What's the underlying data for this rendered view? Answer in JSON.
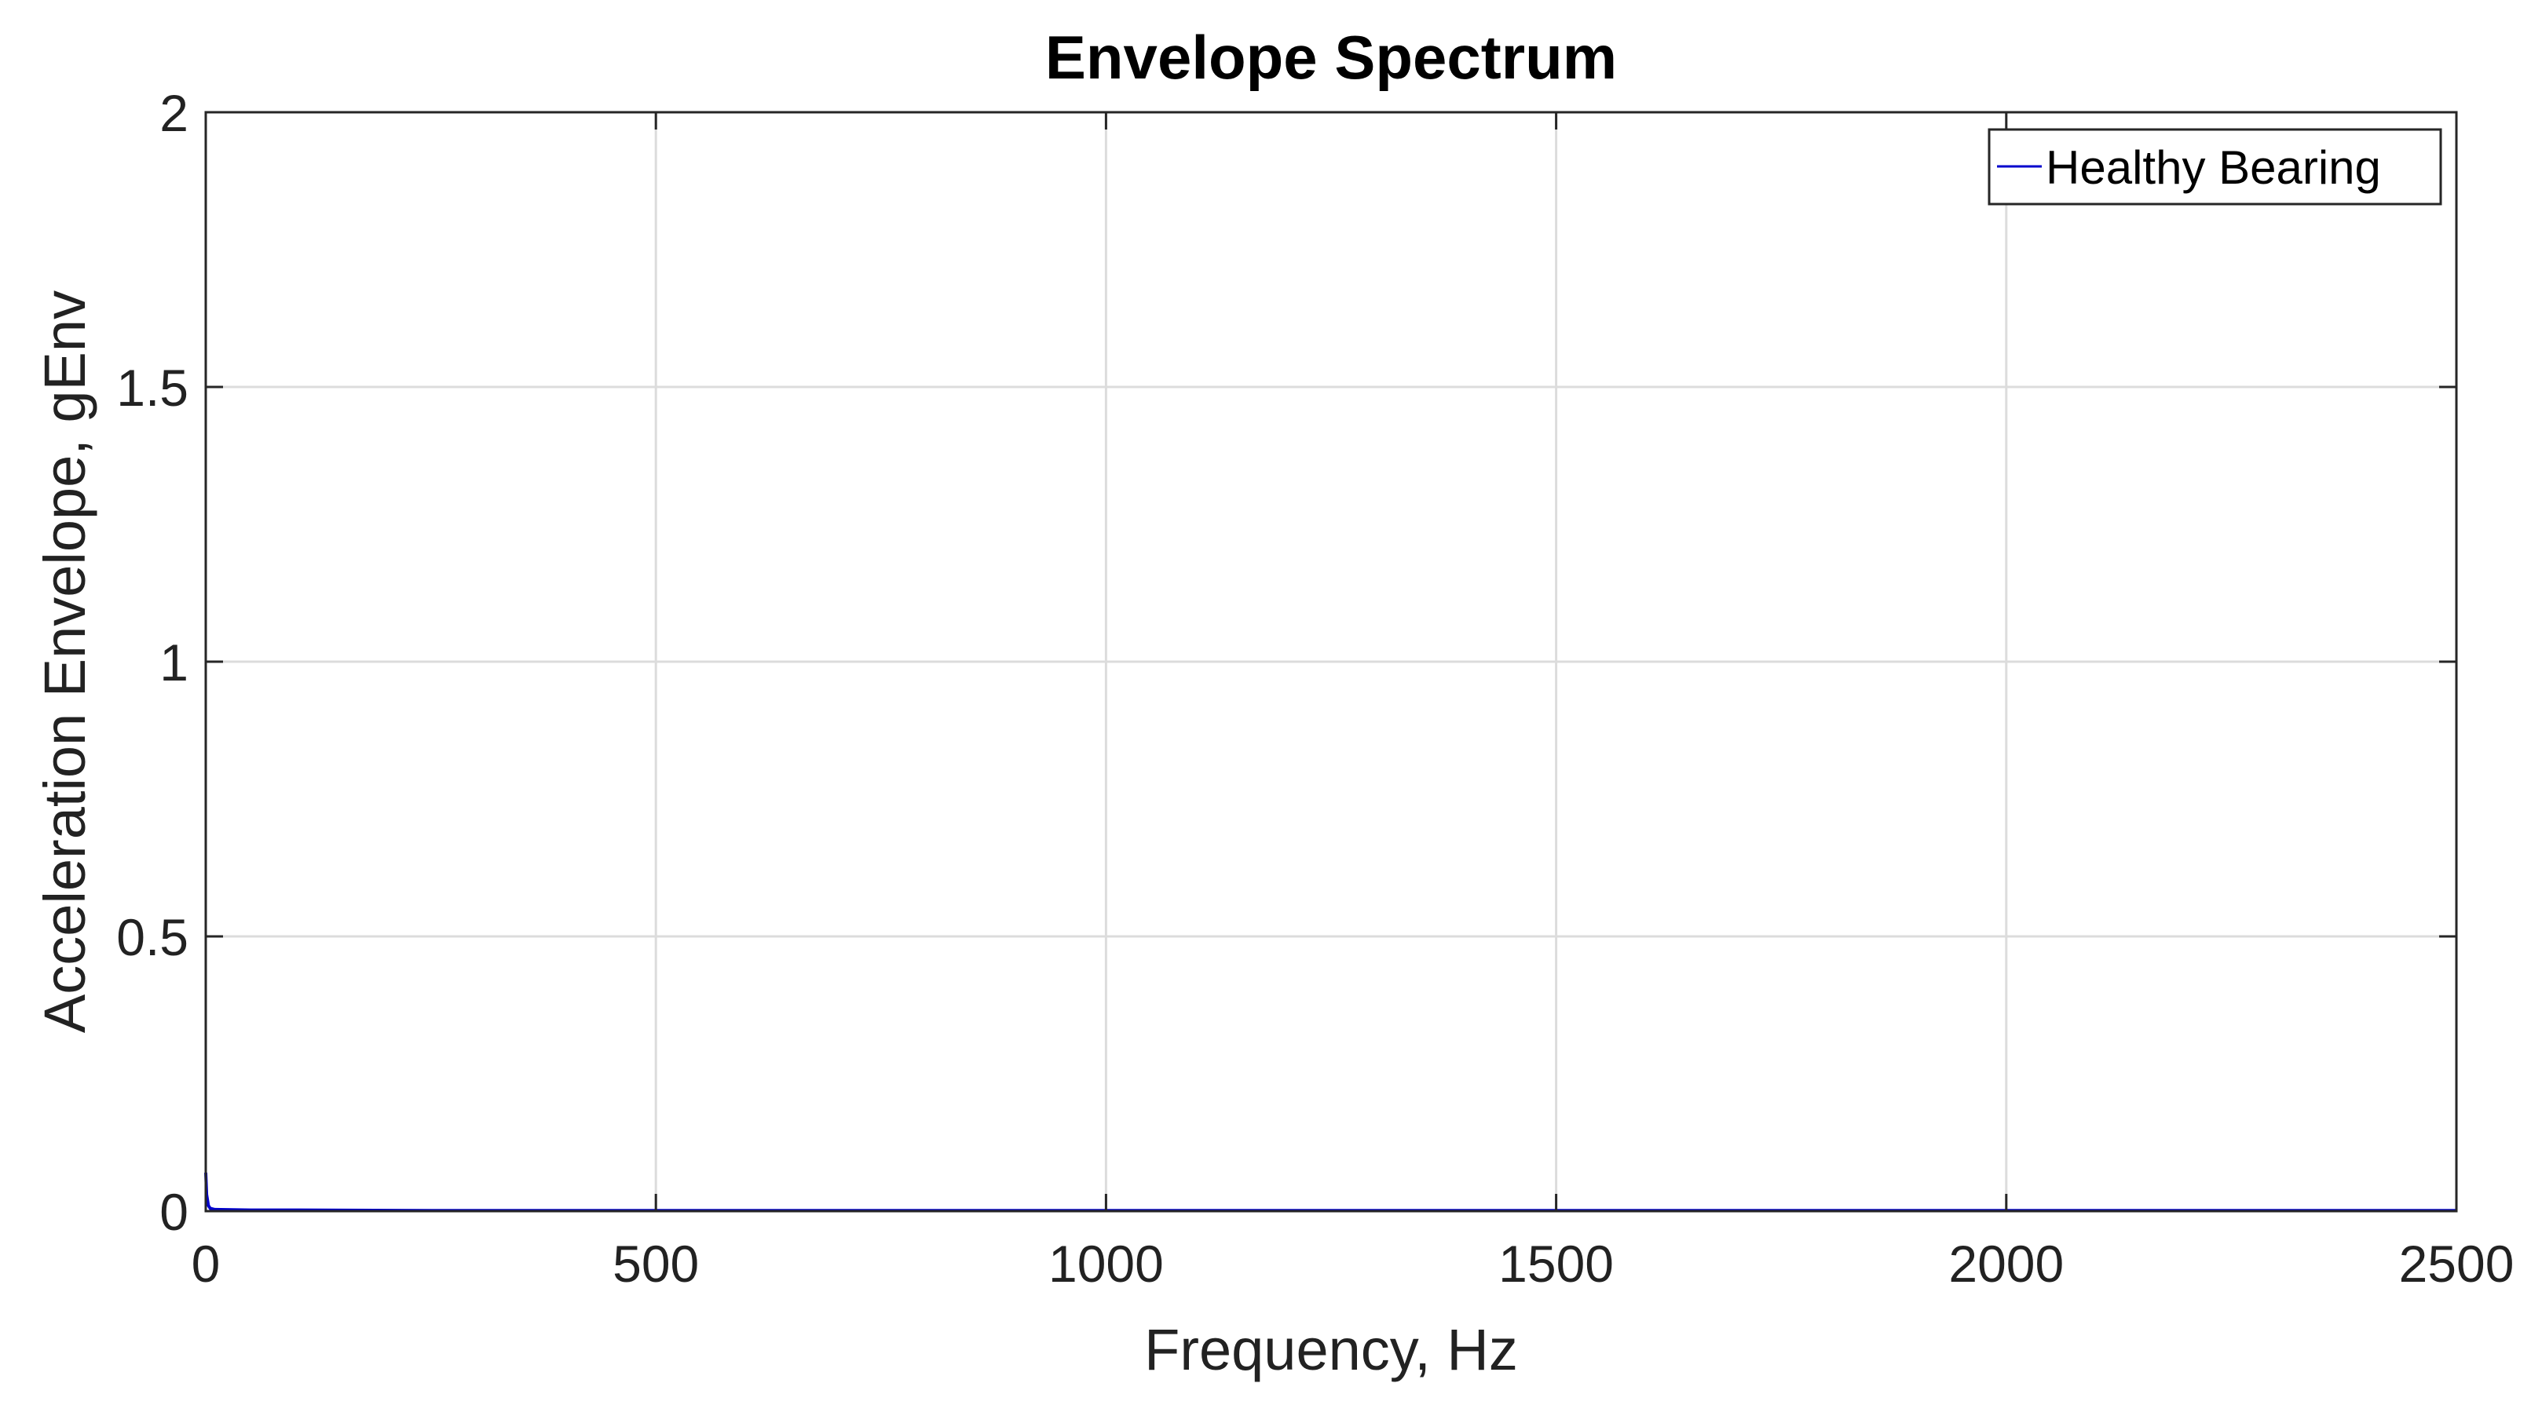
{
  "chart_data": {
    "type": "line",
    "title": "Envelope Spectrum",
    "xlabel": "Frequency, Hz",
    "ylabel": "Acceleration Envelope, gEnv",
    "xlim": [
      0,
      2500
    ],
    "ylim": [
      0,
      2
    ],
    "xticks": [
      0,
      500,
      1000,
      1500,
      2000,
      2500
    ],
    "yticks": [
      0,
      0.5,
      1,
      1.5,
      2
    ],
    "xtick_labels": [
      "0",
      "500",
      "1000",
      "1500",
      "2000",
      "2500"
    ],
    "ytick_labels": [
      "0",
      "0.5",
      "1",
      "1.5",
      "2"
    ],
    "grid": true,
    "legend_position": "top-right",
    "series": [
      {
        "name": "Healthy Bearing",
        "color": "#0000cc",
        "x": [
          0,
          1,
          3,
          5,
          10,
          50,
          100,
          250,
          500,
          750,
          1000,
          1250,
          1500,
          1750,
          2000,
          2250,
          2500
        ],
        "y": [
          0.07,
          0.03,
          0.01,
          0.005,
          0.003,
          0.002,
          0.002,
          0.001,
          0.001,
          0.001,
          0.001,
          0.001,
          0.001,
          0.001,
          0.001,
          0.001,
          0.001
        ]
      }
    ]
  }
}
